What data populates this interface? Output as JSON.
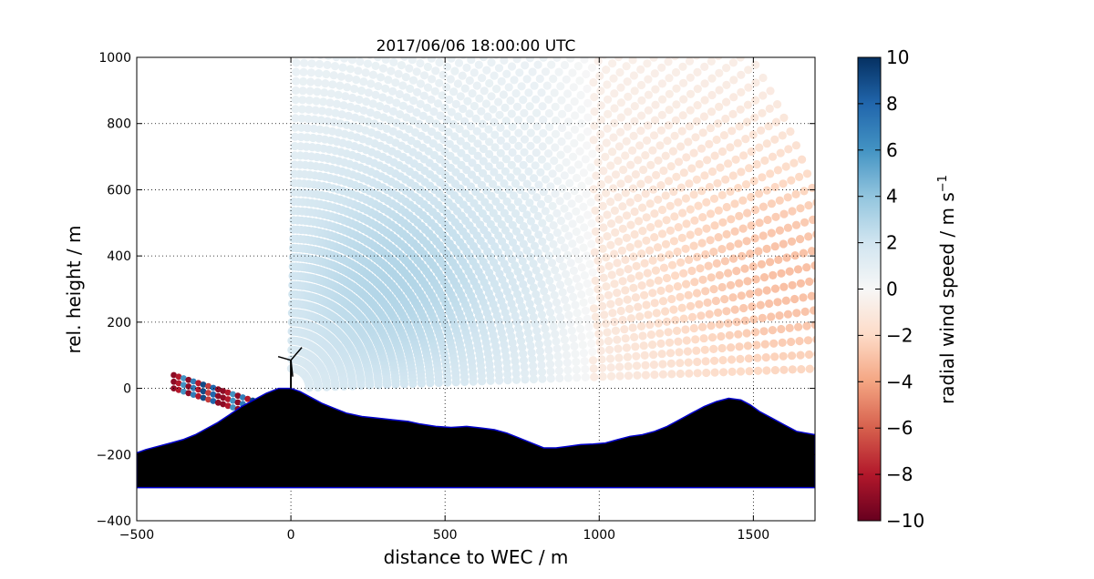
{
  "chart_data": {
    "type": "scatter",
    "title": "2017/06/06 18:00:00 UTC",
    "xlabel": "distance to WEC / m",
    "ylabel": "rel. height / m",
    "xlim": [
      -500,
      1700
    ],
    "ylim": [
      -400,
      1000
    ],
    "xticks": [
      -500,
      0,
      500,
      1000,
      1500
    ],
    "yticks": [
      -400,
      -200,
      0,
      200,
      400,
      600,
      800,
      1000
    ],
    "xtick_labels": [
      "−500",
      "0",
      "500",
      "1000",
      "1500"
    ],
    "ytick_labels": [
      "−400",
      "−200",
      "0",
      "200",
      "400",
      "600",
      "800",
      "1000"
    ],
    "grid": true,
    "grid_style": "dotted",
    "colorbar": {
      "label": "radial wind speed / m s",
      "label_exponent": "−1",
      "range": [
        -10,
        10
      ],
      "ticks": [
        10,
        8,
        6,
        4,
        2,
        0,
        -2,
        -4,
        -6,
        -8,
        -10
      ],
      "tick_labels": [
        "10",
        "8",
        "6",
        "4",
        "2",
        "0",
        "−2",
        "−4",
        "−6",
        "−8",
        "−10"
      ],
      "colormap": "RdBu"
    },
    "scan": {
      "origin": [
        0,
        0
      ],
      "beam_count": 60,
      "elevation_range_deg": [
        2,
        89
      ],
      "max_range": 1800,
      "field_description_values": {
        "left_region_speed": 3,
        "right_region_speed": -3
      }
    },
    "wind_turbine_location": [
      0,
      0
    ],
    "terrain_profile": {
      "x": [
        -500,
        -470,
        -430,
        -390,
        -350,
        -310,
        -280,
        -240,
        -200,
        -160,
        -120,
        -80,
        -40,
        0,
        30,
        60,
        100,
        140,
        180,
        230,
        280,
        330,
        380,
        420,
        470,
        520,
        570,
        620,
        660,
        700,
        740,
        780,
        820,
        860,
        900,
        940,
        980,
        1020,
        1060,
        1100,
        1140,
        1180,
        1220,
        1260,
        1300,
        1340,
        1380,
        1420,
        1460,
        1490,
        1520,
        1560,
        1600,
        1640,
        1670,
        1700
      ],
      "y": [
        -195,
        -185,
        -175,
        -165,
        -155,
        -140,
        -125,
        -105,
        -80,
        -55,
        -35,
        -15,
        0,
        0,
        -10,
        -25,
        -45,
        -60,
        -75,
        -85,
        -90,
        -95,
        -100,
        -108,
        -115,
        -118,
        -115,
        -120,
        -125,
        -135,
        -150,
        -165,
        -180,
        -180,
        -175,
        -170,
        -168,
        -165,
        -155,
        -145,
        -140,
        -130,
        -115,
        -95,
        -75,
        -55,
        -40,
        -30,
        -35,
        -50,
        -70,
        -90,
        -110,
        -130,
        -135,
        -140
      ],
      "base": -300
    },
    "near_ground_beams": {
      "rows": [
        {
          "y0": 40,
          "x_start": -380,
          "x_end": -100,
          "slope": -0.3
        },
        {
          "y0": 20,
          "x_start": -380,
          "x_end": -60,
          "slope": -0.3
        },
        {
          "y0": 0,
          "x_start": -380,
          "x_end": -30,
          "slope": -0.3
        }
      ]
    },
    "colors": {
      "terrain": "#000000",
      "terrain_edge": "#0000cc"
    }
  }
}
